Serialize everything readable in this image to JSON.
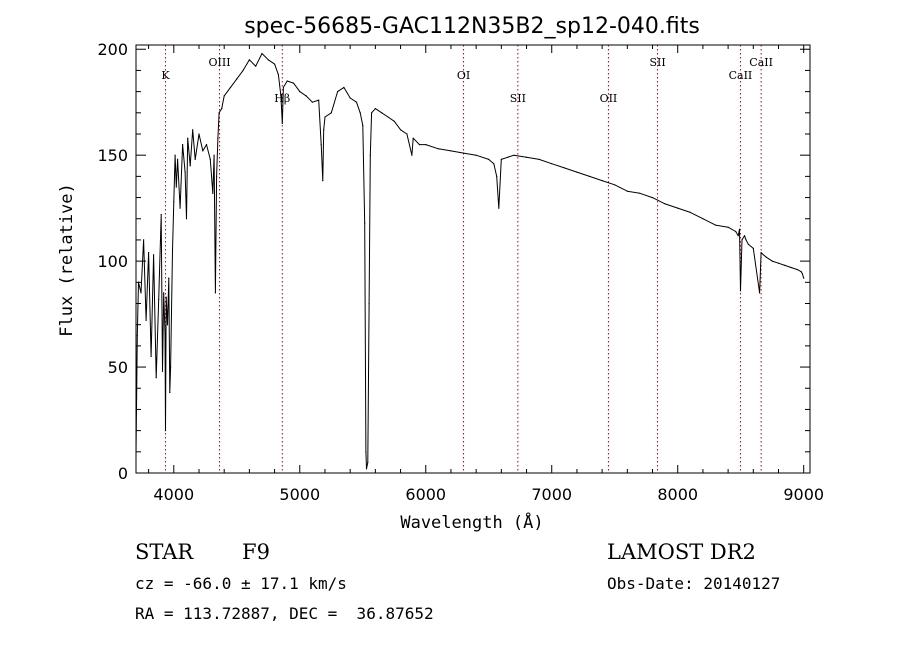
{
  "chart_data": {
    "type": "line",
    "title": "spec-56685-GAC112N35B2_sp12-040.fits",
    "xlabel": "Wavelength (Å)",
    "ylabel": "Flux (relative)",
    "xlim": [
      3700,
      9050
    ],
    "ylim": [
      0,
      202
    ],
    "xticks": [
      4000,
      5000,
      6000,
      7000,
      8000,
      9000
    ],
    "yticks": [
      0,
      50,
      100,
      150,
      200
    ],
    "grid": false,
    "line_markers": [
      {
        "label": "K",
        "x": 3934,
        "label_y": 186
      },
      {
        "label": "OIII",
        "x": 4363,
        "label_y": 192
      },
      {
        "label": "Hβ",
        "x": 4861,
        "label_y": 175
      },
      {
        "label": "OI",
        "x": 6300,
        "label_y": 186
      },
      {
        "label": "SII",
        "x": 6731,
        "label_y": 175
      },
      {
        "label": "OII",
        "x": 7450,
        "label_y": 175
      },
      {
        "label": "SII",
        "x": 7840,
        "label_y": 192
      },
      {
        "label": "CaII",
        "x": 8498,
        "label_y": 186
      },
      {
        "label": "CaII",
        "x": 8662,
        "label_y": 192
      }
    ],
    "series": [
      {
        "x": [
          3700,
          3710,
          3720,
          3740,
          3760,
          3780,
          3800,
          3820,
          3840,
          3860,
          3880,
          3900,
          3910,
          3920,
          3930,
          3934,
          3940,
          3950,
          3960,
          3968,
          3975,
          3990,
          4000,
          4010,
          4020,
          4030,
          4050,
          4070,
          4090,
          4101,
          4110,
          4130,
          4150,
          4170,
          4200,
          4230,
          4260,
          4290,
          4310,
          4320,
          4330,
          4340,
          4350,
          4360,
          4380,
          4400,
          4450,
          4500,
          4550,
          4600,
          4650,
          4700,
          4750,
          4800,
          4830,
          4850,
          4861,
          4870,
          4900,
          4950,
          5000,
          5050,
          5100,
          5150,
          5170,
          5183,
          5190,
          5200,
          5250,
          5300,
          5350,
          5400,
          5450,
          5480,
          5500,
          5515,
          5525,
          5530,
          5540,
          5550,
          5560,
          5570,
          5600,
          5650,
          5700,
          5750,
          5800,
          5850,
          5890,
          5900,
          5950,
          6000,
          6100,
          6200,
          6300,
          6400,
          6500,
          6540,
          6563,
          6580,
          6600,
          6650,
          6700,
          6800,
          6900,
          7000,
          7100,
          7200,
          7300,
          7400,
          7500,
          7600,
          7700,
          7800,
          7900,
          8000,
          8100,
          8200,
          8300,
          8400,
          8460,
          8480,
          8490,
          8498,
          8510,
          8530,
          8542,
          8560,
          8600,
          8650,
          8662,
          8680,
          8700,
          8750,
          8800,
          8850,
          8900,
          8950,
          8980,
          8990,
          9000
        ],
        "values": [
          8,
          65,
          90,
          85,
          110,
          72,
          104,
          55,
          103,
          45,
          82,
          122,
          48,
          85,
          66,
          20,
          83,
          70,
          92,
          38,
          50,
          105,
          128,
          150,
          135,
          148,
          125,
          155,
          142,
          120,
          158,
          145,
          162,
          148,
          160,
          152,
          155,
          148,
          132,
          150,
          85,
          140,
          158,
          170,
          172,
          178,
          182,
          186,
          190,
          195,
          192,
          198,
          195,
          193,
          188,
          178,
          165,
          182,
          185,
          184,
          180,
          178,
          175,
          176,
          155,
          138,
          162,
          168,
          170,
          180,
          182,
          177,
          175,
          170,
          164,
          118,
          10,
          2,
          5,
          80,
          150,
          170,
          172,
          170,
          168,
          166,
          162,
          160,
          150,
          158,
          155,
          155,
          153,
          152,
          151,
          150,
          148,
          146,
          140,
          125,
          148,
          149,
          150,
          149,
          148,
          146,
          144,
          142,
          140,
          138,
          136,
          133,
          132,
          130,
          127,
          125,
          123,
          120,
          117,
          116,
          114,
          112,
          115,
          86,
          110,
          112,
          110,
          108,
          106,
          85,
          104,
          103,
          102,
          100,
          99,
          98,
          97,
          96,
          95,
          94,
          92
        ]
      }
    ]
  },
  "info": {
    "object_type": "STAR",
    "spectral_class": "F9",
    "survey": "LAMOST DR2",
    "redshift": "cz = -66.0 ± 17.1 km/s",
    "obs_date": "Obs-Date: 20140127",
    "coords": "RA = 113.72887, DEC =  36.87652"
  }
}
